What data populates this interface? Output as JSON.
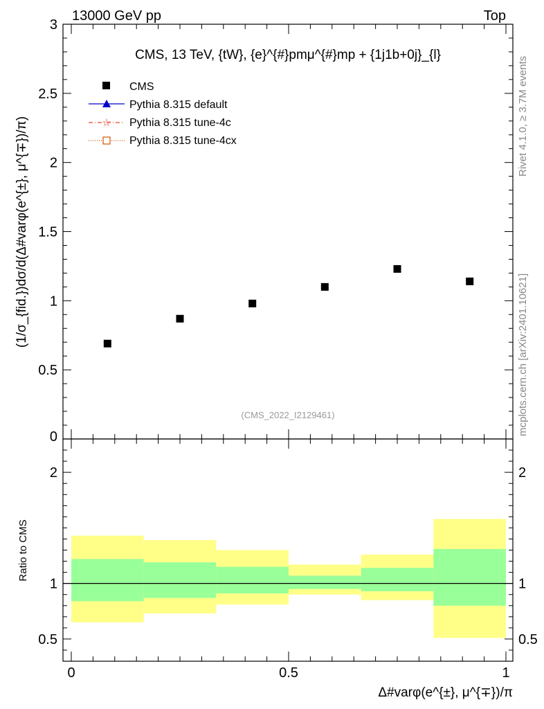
{
  "header": {
    "left": "13000 GeV pp",
    "right": "Top"
  },
  "side": {
    "rivet": "Rivet 4.1.0, ≥ 3.7M events",
    "mcplots": "mcplots.cern.ch [arXiv:2401.10621]"
  },
  "colors": {
    "data": "#000000",
    "default": "#0000cc",
    "tune4c": "#e8432e",
    "tune4cx": "#cc5500",
    "band_inner": "#99ff99",
    "band_outer": "#ffff88",
    "watermark": "#999999"
  },
  "chart_data": [
    {
      "type": "scatter",
      "title": "CMS, 13 TeV, {tW}, {e}^{#}pmμ^{#}mp + {1j1b+0j}_{l}",
      "ylabel": "(1/σ_{fid.})dσ/d(Δ#varφ(e^{±}, μ^{∓})/π)",
      "xlim": [
        0,
        1
      ],
      "ylim": [
        0,
        3
      ],
      "yticks": [
        "0.5",
        "1",
        "1.5",
        "2",
        "2.5",
        "3"
      ],
      "yticks_values": [
        0.5,
        1,
        1.5,
        2,
        2.5,
        3
      ],
      "ytick_zero": "0",
      "watermark": "(CMS_2022_I2129461)",
      "legend": [
        {
          "label": "CMS",
          "marker": "square"
        },
        {
          "label": "Pythia 8.315 default",
          "marker": "triangle"
        },
        {
          "label": "Pythia 8.315 tune-4c",
          "marker": "star"
        },
        {
          "label": "Pythia 8.315 tune-4cx",
          "marker": "open-square"
        }
      ],
      "x": [
        0.0833,
        0.25,
        0.4167,
        0.5833,
        0.75,
        0.9167
      ],
      "values": [
        0.69,
        0.87,
        0.98,
        1.1,
        1.23,
        1.14
      ]
    },
    {
      "type": "ratio-band",
      "ylabel": "Ratio to CMS",
      "xlabel": "Δ#varφ(e^{±}, μ^{∓})/π",
      "xlim": [
        0,
        1
      ],
      "ylim": [
        0.3,
        2.3
      ],
      "yticks": [
        "0.5",
        "1",
        "2"
      ],
      "yticks_values": [
        0.5,
        1,
        2
      ],
      "xticks": [
        "0",
        "0.5",
        "1"
      ],
      "xticks_values": [
        0,
        0.5,
        1
      ],
      "bins": [
        {
          "lo": 0.0,
          "hi": 0.1667,
          "inner": [
            0.84,
            1.22
          ],
          "outer": [
            0.65,
            1.43
          ]
        },
        {
          "lo": 0.1667,
          "hi": 0.3333,
          "inner": [
            0.87,
            1.19
          ],
          "outer": [
            0.73,
            1.39
          ]
        },
        {
          "lo": 0.3333,
          "hi": 0.5,
          "inner": [
            0.91,
            1.15
          ],
          "outer": [
            0.81,
            1.3
          ]
        },
        {
          "lo": 0.5,
          "hi": 0.6667,
          "inner": [
            0.95,
            1.07
          ],
          "outer": [
            0.9,
            1.17
          ]
        },
        {
          "lo": 0.6667,
          "hi": 0.8333,
          "inner": [
            0.93,
            1.14
          ],
          "outer": [
            0.85,
            1.26
          ]
        },
        {
          "lo": 0.8333,
          "hi": 1.0,
          "inner": [
            0.8,
            1.31
          ],
          "outer": [
            0.51,
            1.58
          ]
        }
      ],
      "reference": 1
    }
  ]
}
